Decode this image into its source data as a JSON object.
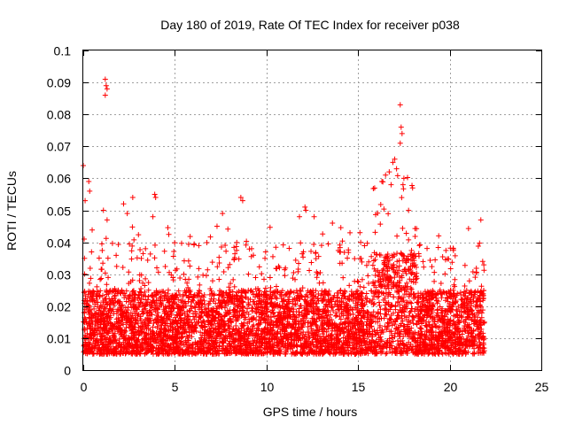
{
  "chart_data": {
    "type": "scatter",
    "title": "Day 180 of 2019, Rate Of TEC Index for receiver p038",
    "xlabel": "GPS time / hours",
    "ylabel": "ROTI / TECUs",
    "xlim": [
      0,
      25
    ],
    "ylim": [
      0,
      0.1
    ],
    "x_ticks": [
      "0",
      "5",
      "10",
      "15",
      "20",
      "25"
    ],
    "y_ticks": [
      "0",
      "0.01",
      "0.02",
      "0.03",
      "0.04",
      "0.05",
      "0.06",
      "0.07",
      "0.08",
      "0.09",
      "0.1"
    ],
    "grid": true,
    "marker": "+",
    "series": [
      {
        "name": "ROTI",
        "color": "#ff0000",
        "time_range_hours": [
          0,
          21.9
        ],
        "typical_range": [
          0.005,
          0.025
        ],
        "notable_points": [
          {
            "x": 0.0,
            "y": 0.064
          },
          {
            "x": 0.1,
            "y": 0.053
          },
          {
            "x": 0.05,
            "y": 0.041
          },
          {
            "x": 0.3,
            "y": 0.059
          },
          {
            "x": 0.35,
            "y": 0.056
          },
          {
            "x": 1.2,
            "y": 0.091
          },
          {
            "x": 1.25,
            "y": 0.089
          },
          {
            "x": 1.3,
            "y": 0.088
          },
          {
            "x": 1.2,
            "y": 0.086
          },
          {
            "x": 1.1,
            "y": 0.05
          },
          {
            "x": 1.3,
            "y": 0.047
          },
          {
            "x": 2.2,
            "y": 0.052
          },
          {
            "x": 2.7,
            "y": 0.054
          },
          {
            "x": 2.4,
            "y": 0.049
          },
          {
            "x": 3.9,
            "y": 0.055
          },
          {
            "x": 3.95,
            "y": 0.054
          },
          {
            "x": 3.8,
            "y": 0.048
          },
          {
            "x": 7.6,
            "y": 0.049
          },
          {
            "x": 7.3,
            "y": 0.045
          },
          {
            "x": 8.6,
            "y": 0.054
          },
          {
            "x": 8.7,
            "y": 0.053
          },
          {
            "x": 11.8,
            "y": 0.048
          },
          {
            "x": 12.1,
            "y": 0.051
          },
          {
            "x": 12.15,
            "y": 0.05
          },
          {
            "x": 12.6,
            "y": 0.048
          },
          {
            "x": 13.6,
            "y": 0.046
          },
          {
            "x": 15.1,
            "y": 0.043
          },
          {
            "x": 16.3,
            "y": 0.059
          },
          {
            "x": 16.5,
            "y": 0.061
          },
          {
            "x": 16.7,
            "y": 0.062
          },
          {
            "x": 16.8,
            "y": 0.058
          },
          {
            "x": 16.9,
            "y": 0.065
          },
          {
            "x": 17.0,
            "y": 0.066
          },
          {
            "x": 17.1,
            "y": 0.063
          },
          {
            "x": 17.3,
            "y": 0.083
          },
          {
            "x": 17.35,
            "y": 0.076
          },
          {
            "x": 17.4,
            "y": 0.074
          },
          {
            "x": 17.3,
            "y": 0.071
          },
          {
            "x": 17.5,
            "y": 0.06
          },
          {
            "x": 17.45,
            "y": 0.058
          },
          {
            "x": 19.4,
            "y": 0.042
          },
          {
            "x": 20.2,
            "y": 0.038
          },
          {
            "x": 21.7,
            "y": 0.047
          },
          {
            "x": 21.8,
            "y": 0.034
          }
        ]
      }
    ]
  }
}
